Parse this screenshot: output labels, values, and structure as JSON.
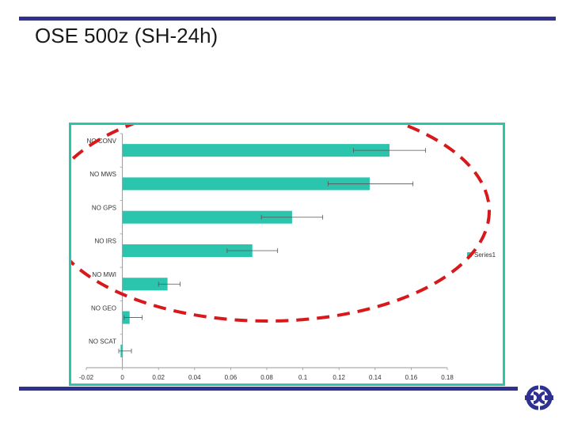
{
  "slide": {
    "title": "OSE 500z (SH-24h)"
  },
  "colors": {
    "bar": "#2bc4ad",
    "rule": "#2e3192",
    "ellipse": "#d7191c",
    "logo": "#2e3192"
  },
  "logo": {
    "icon": "ecmwf-logo-icon"
  },
  "chart_data": {
    "type": "bar",
    "orientation": "horizontal",
    "categories": [
      "NO CONV",
      "NO MWS",
      "NO GPS",
      "NO IRS",
      "NO MWI",
      "NO GEO",
      "NO SCAT"
    ],
    "series": [
      {
        "name": "Series1",
        "values": [
          0.148,
          0.137,
          0.094,
          0.072,
          0.025,
          0.004,
          -0.001
        ],
        "error_low": [
          0.128,
          0.114,
          0.077,
          0.058,
          0.02,
          0.001,
          -0.002
        ],
        "error_high": [
          0.168,
          0.161,
          0.111,
          0.086,
          0.032,
          0.011,
          0.005
        ]
      }
    ],
    "xticks": [
      "-0.02",
      "0",
      "0.02",
      "0.04",
      "0.06",
      "0.08",
      "0.1",
      "0.12",
      "0.14",
      "0.16",
      "0.18"
    ],
    "xlim": [
      -0.02,
      0.18
    ],
    "legend": "right",
    "grid": false,
    "annotation": "dashed red ellipse around NO CONV to NO MWI bars"
  }
}
